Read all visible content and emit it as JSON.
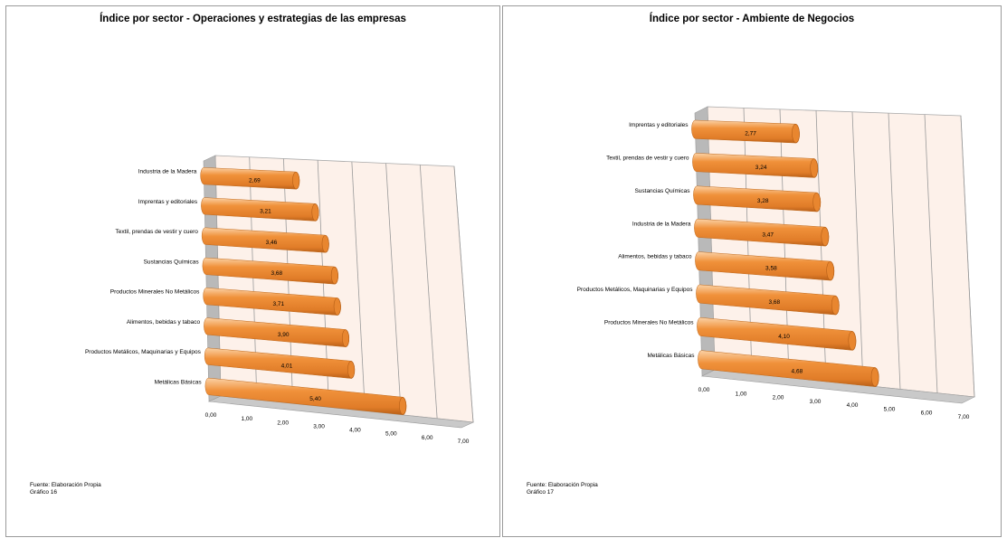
{
  "charts": [
    {
      "title": "Índice por sector - Operaciones y estrategias de las empresas",
      "source": "Fuente: Elaboración Propia",
      "figure": "Gráfico 16"
    },
    {
      "title": "Índice por sector - Ambiente de Negocios",
      "source": "Fuente: Elaboración Propia",
      "figure": "Gráfico 17"
    }
  ],
  "chart_data": [
    {
      "type": "bar",
      "orientation": "horizontal-3d-cylinder",
      "title": "Índice por sector - Operaciones y estrategias de las empresas",
      "categories": [
        "Industria de la Madera",
        "Imprentas y editoriales",
        "Textil, prendas de vestir y cuero",
        "Sustancias Químicas",
        "Productos Minerales No Metálicos",
        "Alimentos, bebidas y tabaco",
        "Productos Metálicos,  Maquinarias  y Equipos",
        "Metálicas Básicas"
      ],
      "values": [
        2.69,
        3.21,
        3.46,
        3.68,
        3.71,
        3.9,
        4.01,
        5.4
      ],
      "value_labels": [
        "2,69",
        "3,21",
        "3,46",
        "3,68",
        "3,71",
        "3,90",
        "4,01",
        "5,40"
      ],
      "xticks": [
        "0,00",
        "1,00",
        "2,00",
        "3,00",
        "4,00",
        "5,00",
        "6,00",
        "7,00"
      ],
      "xlim": [
        0,
        7
      ],
      "grid": true,
      "bar_color": "#f0913a",
      "wall_color": "#fdf1ea"
    },
    {
      "type": "bar",
      "orientation": "horizontal-3d-cylinder",
      "title": "Índice por sector - Ambiente de Negocios",
      "categories": [
        "Imprentas y editoriales",
        "Textil, prendas de vestir y cuero",
        "Sustancias Químicas",
        "Industria de la Madera",
        "Alimentos, bebidas y tabaco",
        "Productos Metálicos,  Maquinarias  y Equipos",
        "Productos Minerales No Metálicos",
        "Metálicas Básicas"
      ],
      "values": [
        2.77,
        3.24,
        3.28,
        3.47,
        3.58,
        3.68,
        4.1,
        4.68
      ],
      "value_labels": [
        "2,77",
        "3,24",
        "3,28",
        "3,47",
        "3,58",
        "3,68",
        "4,10",
        "4,68"
      ],
      "xticks": [
        "0,00",
        "1,00",
        "2,00",
        "3,00",
        "4,00",
        "5,00",
        "6,00",
        "7,00"
      ],
      "xlim": [
        0,
        7
      ],
      "grid": true,
      "bar_color": "#f0913a",
      "wall_color": "#fdf1ea"
    }
  ]
}
